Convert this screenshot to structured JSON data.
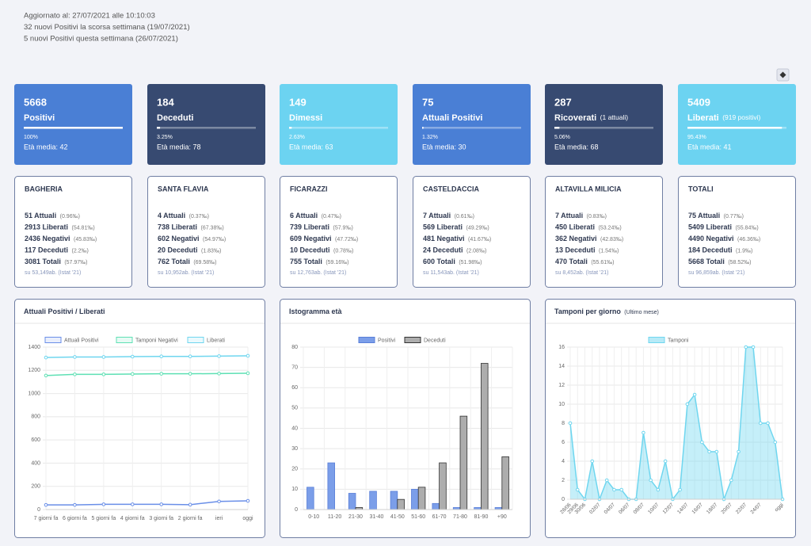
{
  "header": {
    "lines": [
      "Aggiornato al: 27/07/2021 alle 10:10:03",
      "32 nuovi Positivi la scorsa settimana (19/07/2021)",
      "5 nuovi Positivi questa settimana (26/07/2021)"
    ]
  },
  "stat_cards": [
    {
      "value": 5668,
      "label": "Positivi",
      "percent": {
        "value": 100,
        "label": "100%"
      },
      "age": "Età media: 42",
      "color": "#4a7fd5"
    },
    {
      "value": 184,
      "label": "Deceduti",
      "percent": {
        "value": 3.25,
        "label": "3.25%"
      },
      "age": "Età media: 78",
      "color": "#374a71"
    },
    {
      "value": 149,
      "label": "Dimessi",
      "percent": {
        "value": 2.63,
        "label": "2.63%"
      },
      "age": "Età media: 63",
      "color": "#6cd3f1"
    },
    {
      "value": 75,
      "label": "Attuali Positivi",
      "percent": {
        "value": 1.32,
        "label": "1.32%"
      },
      "age": "Età media: 30",
      "color": "#4a7fd5"
    },
    {
      "value": 287,
      "label": "Ricoverati",
      "note": "(1 attuali)",
      "percent": {
        "value": 5.06,
        "label": "5.06%"
      },
      "age": "Età media: 68",
      "color": "#374a71"
    },
    {
      "value": 5409,
      "label": "Liberati",
      "note": "(919 positivi)",
      "percent": {
        "value": 95.43,
        "label": "95.43%"
      },
      "age": "Età media: 41",
      "color": "#6cd3f1"
    }
  ],
  "towns": [
    {
      "name": "BAGHERIA",
      "rows": [
        {
          "text": "51 Attuali",
          "note": "(0.96‰)"
        },
        {
          "text": "2913 Liberati",
          "note": "(54.81‰)"
        },
        {
          "text": "2436 Negativi",
          "note": "(45.83‰)"
        },
        {
          "text": "117 Deceduti",
          "note": "(2.2‰)"
        },
        {
          "text": "3081 Totali",
          "note": "(57.97‰)"
        }
      ],
      "footer": "su 53,149ab. (Istat '21)"
    },
    {
      "name": "SANTA FLAVIA",
      "rows": [
        {
          "text": "4 Attuali",
          "note": "(0.37‰)"
        },
        {
          "text": "738 Liberati",
          "note": "(67.38‰)"
        },
        {
          "text": "602 Negativi",
          "note": "(54.97‰)"
        },
        {
          "text": "20 Deceduti",
          "note": "(1.83‰)"
        },
        {
          "text": "762 Totali",
          "note": "(69.58‰)"
        }
      ],
      "footer": "su 10,952ab. (Istat '21)"
    },
    {
      "name": "FICARAZZI",
      "rows": [
        {
          "text": "6 Attuali",
          "note": "(0.47‰)"
        },
        {
          "text": "739 Liberati",
          "note": "(57.9‰)"
        },
        {
          "text": "609 Negativi",
          "note": "(47.72‰)"
        },
        {
          "text": "10 Deceduti",
          "note": "(0.78‰)"
        },
        {
          "text": "755 Totali",
          "note": "(59.16‰)"
        }
      ],
      "footer": "su 12,763ab. (Istat '21)"
    },
    {
      "name": "CASTELDACCIA",
      "rows": [
        {
          "text": "7 Attuali",
          "note": "(0.61‰)"
        },
        {
          "text": "569 Liberati",
          "note": "(49.29‰)"
        },
        {
          "text": "481 Negativi",
          "note": "(41.67‰)"
        },
        {
          "text": "24 Deceduti",
          "note": "(2.08‰)"
        },
        {
          "text": "600 Totali",
          "note": "(51.98‰)"
        }
      ],
      "footer": "su 11,543ab. (Istat '21)"
    },
    {
      "name": "ALTAVILLA MILICIA",
      "rows": [
        {
          "text": "7 Attuali",
          "note": "(0.83‰)"
        },
        {
          "text": "450 Liberati",
          "note": "(53.24‰)"
        },
        {
          "text": "362 Negativi",
          "note": "(42.83‰)"
        },
        {
          "text": "13 Deceduti",
          "note": "(1.54‰)"
        },
        {
          "text": "470 Totali",
          "note": "(55.61‰)"
        }
      ],
      "footer": "su 8,452ab. (Istat '21)"
    },
    {
      "name": "TOTALI",
      "rows": [
        {
          "text": "75 Attuali",
          "note": "(0.77‰)"
        },
        {
          "text": "5409 Liberati",
          "note": "(55.84‰)"
        },
        {
          "text": "4490 Negativi",
          "note": "(46.36‰)"
        },
        {
          "text": "184 Deceduti",
          "note": "(1.9‰)"
        },
        {
          "text": "5668 Totali",
          "note": "(58.52‰)"
        }
      ],
      "footer": "su 96,859ab. (Istat '21)"
    }
  ],
  "chart_data": [
    {
      "type": "line",
      "title": "Attuali Positivi / Liberati",
      "categories": [
        "7 giorni fa",
        "6 giorni fa",
        "5 giorni fa",
        "4 giorni fa",
        "3 giorni fa",
        "2 giorni fa",
        "ieri",
        "oggi"
      ],
      "series": [
        {
          "name": "Attuali Positivi",
          "color": "#6a8fe8",
          "values": [
            40,
            40,
            45,
            45,
            45,
            42,
            70,
            75
          ]
        },
        {
          "name": "Tamponi Negativi",
          "color": "#5ee0b4",
          "values": [
            1155,
            1165,
            1165,
            1168,
            1170,
            1170,
            1172,
            1175
          ]
        },
        {
          "name": "Liberati",
          "color": "#6fd6ef",
          "values": [
            1310,
            1315,
            1315,
            1318,
            1320,
            1320,
            1322,
            1325
          ]
        }
      ],
      "ylim": [
        0,
        1400
      ],
      "yticks": [
        0,
        200,
        400,
        600,
        800,
        1000,
        1200,
        1400
      ],
      "grid": true
    },
    {
      "type": "bar",
      "title": "Istogramma età",
      "categories": [
        "0-10",
        "11-20",
        "21-30",
        "31-40",
        "41-50",
        "51-60",
        "61-70",
        "71-80",
        "81-90",
        "+90"
      ],
      "series": [
        {
          "name": "Positivi",
          "color": "#7b9ee9",
          "border_color": "#5a7fd8",
          "values": [
            11,
            23,
            8,
            9,
            9,
            10,
            3,
            1,
            1,
            1
          ]
        },
        {
          "name": "Deceduti",
          "color": "#adadad",
          "border_color": "#333333",
          "values": [
            0,
            0,
            1,
            0,
            5,
            11,
            23,
            46,
            72,
            26
          ]
        }
      ],
      "ylim": [
        0,
        80
      ],
      "yticks": [
        0,
        10,
        20,
        30,
        40,
        50,
        60,
        70,
        80
      ],
      "grid": true
    },
    {
      "type": "area",
      "title": "Tamponi per giorno",
      "subtitle": "(Ultimo mese)",
      "categories": [
        "28/06",
        "29/06",
        "30/06",
        null,
        "02/07",
        null,
        "04/07",
        null,
        "06/07",
        null,
        "08/07",
        null,
        "10/07",
        null,
        "12/07",
        null,
        "14/07",
        null,
        "16/07",
        null,
        "18/07",
        null,
        "20/07",
        null,
        "22/07",
        null,
        "24/07",
        null,
        null,
        "oggi"
      ],
      "series": [
        {
          "name": "Tamponi",
          "color": "#6fd6ef",
          "values": [
            8,
            1,
            0,
            4,
            0,
            2,
            1,
            1,
            0,
            0,
            7,
            2,
            1,
            4,
            0,
            1,
            10,
            11,
            6,
            5,
            5,
            0,
            2,
            5,
            16,
            16,
            8,
            8,
            6,
            0
          ]
        }
      ],
      "ylim": [
        0,
        16
      ],
      "yticks": [
        0,
        2,
        4,
        6,
        8,
        10,
        12,
        14,
        16
      ],
      "grid": true
    }
  ]
}
